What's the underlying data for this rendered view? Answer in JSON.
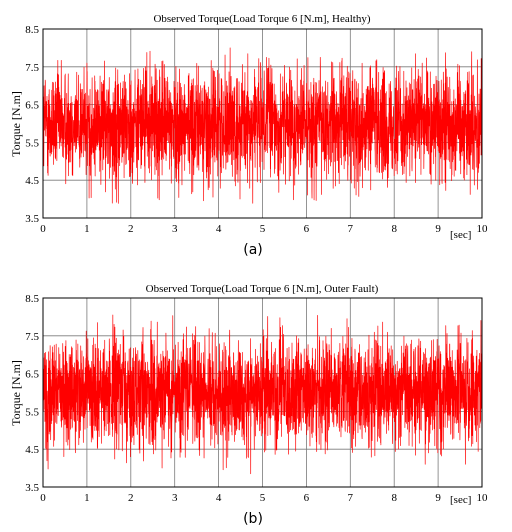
{
  "chart_data": [
    {
      "type": "line",
      "title": "Observed Torque(Load Torque 6 [N.m], Healthy)",
      "ylabel": "Torque [N.m]",
      "xlabel_unit": "[sec]",
      "caption": "(a)",
      "xlim": [
        0,
        10
      ],
      "ylim": [
        3.5,
        8.5
      ],
      "xticks": [
        "0",
        "1",
        "2",
        "3",
        "4",
        "5",
        "6",
        "7",
        "8",
        "9",
        "10"
      ],
      "yticks": [
        "3.5",
        "4.5",
        "5.5",
        "6.5",
        "7.5",
        "8.5"
      ],
      "grid": true,
      "series": [
        {
          "color": "#ff0000",
          "signal": {
            "mean": 6.0,
            "core_band": [
              4.8,
              7.0
            ],
            "min": 3.85,
            "max": 8.05,
            "duration": 10
          }
        }
      ]
    },
    {
      "type": "line",
      "title": "Observed Torque(Load Torque 6 [N.m], Outer Fault)",
      "ylabel": "Torque [N.m]",
      "xlabel_unit": "[sec]",
      "caption": "(b)",
      "xlim": [
        0,
        10
      ],
      "ylim": [
        3.5,
        8.5
      ],
      "xticks": [
        "0",
        "1",
        "2",
        "3",
        "4",
        "5",
        "6",
        "7",
        "8",
        "9",
        "10"
      ],
      "yticks": [
        "3.5",
        "4.5",
        "5.5",
        "6.5",
        "7.5",
        "8.5"
      ],
      "grid": true,
      "series": [
        {
          "color": "#ff0000",
          "signal": {
            "mean": 6.0,
            "core_band": [
              4.8,
              7.0
            ],
            "min": 3.85,
            "max": 8.05,
            "duration": 10
          }
        }
      ]
    }
  ]
}
